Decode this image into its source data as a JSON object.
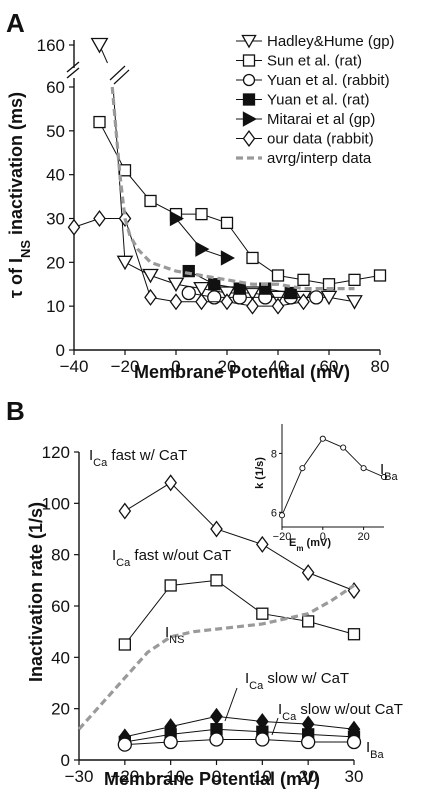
{
  "chart_data": [
    {
      "type": "line",
      "panel_label": "A",
      "xlabel": "Membrane Potential (mV)",
      "ylabel": "τ of I_NS inactivation (ms)",
      "ylabel_parts": {
        "pre": "τ of I",
        "sub": "NS",
        "post": " inactivation (ms)"
      },
      "xlim": [
        -40,
        80
      ],
      "ylim": [
        0,
        65
      ],
      "y_break": true,
      "xticks": [
        -40,
        -20,
        0,
        20,
        40,
        60,
        80
      ],
      "xtick_labels": [
        "−40",
        "−20",
        "0",
        "20",
        "40",
        "60",
        "80"
      ],
      "yticks": [
        0,
        10,
        20,
        30,
        40,
        50,
        60
      ],
      "ytick_labels": [
        "0",
        "10",
        "20",
        "30",
        "40",
        "50",
        "60"
      ],
      "break_tick_label": "160",
      "break_tick_value": 160,
      "legend_position": "top-right",
      "series": [
        {
          "name": "Hadley&Hume (gp)",
          "marker": "triangle-down-open",
          "x": [
            -30,
            -20,
            -10,
            0,
            10,
            20,
            30,
            40,
            50,
            60,
            70
          ],
          "y": [
            160,
            20,
            17,
            15,
            14,
            13,
            13,
            12,
            12,
            12,
            11
          ]
        },
        {
          "name": "Sun et al. (rat)",
          "marker": "square-open",
          "x": [
            -30,
            -20,
            -10,
            0,
            10,
            20,
            30,
            40,
            50,
            60,
            70,
            80
          ],
          "y": [
            52,
            41,
            34,
            31,
            31,
            29,
            21,
            17,
            16,
            15,
            16,
            17
          ]
        },
        {
          "name": "Yuan et al. (rabbit)",
          "marker": "circle-open",
          "x": [
            5,
            15,
            25,
            35,
            45,
            55
          ],
          "y": [
            13,
            12,
            12,
            12,
            12,
            12
          ]
        },
        {
          "name": "Yuan et al. (rat)",
          "marker": "square-filled",
          "x": [
            5,
            15,
            25,
            35,
            45
          ],
          "y": [
            18,
            15,
            14,
            14,
            13
          ]
        },
        {
          "name": "Mitarai et al (gp)",
          "marker": "triangle-right-filled",
          "x": [
            0,
            10,
            20
          ],
          "y": [
            30,
            23,
            21
          ]
        },
        {
          "name": "our data (rabbit)",
          "marker": "diamond-open",
          "x": [
            -40,
            -30,
            -20,
            -10,
            0,
            10,
            20,
            30,
            40,
            50
          ],
          "y": [
            28,
            30,
            30,
            12,
            11,
            11,
            11,
            10,
            10,
            11
          ]
        },
        {
          "name": "avrg/interp data",
          "style": "dashed-gray",
          "x": [
            -25,
            -22,
            -20,
            -18,
            -15,
            -10,
            -5,
            0,
            10,
            20,
            30,
            40,
            50,
            60,
            70
          ],
          "y": [
            60,
            40,
            30,
            26,
            23,
            20,
            19,
            18,
            17,
            16,
            15,
            15,
            14,
            14,
            14
          ]
        }
      ]
    },
    {
      "type": "line",
      "panel_label": "B",
      "xlabel": "Membrane Potential (mV)",
      "ylabel": "Inactivation rate (1/s)",
      "xlim": [
        -30,
        30
      ],
      "ylim": [
        0,
        120
      ],
      "xticks": [
        -30,
        -20,
        -10,
        0,
        10,
        20,
        30
      ],
      "xtick_labels": [
        "−30",
        "−20",
        "−10",
        "0",
        "10",
        "20",
        "30"
      ],
      "yticks": [
        0,
        20,
        40,
        60,
        80,
        100,
        120
      ],
      "ytick_labels": [
        "0",
        "20",
        "40",
        "60",
        "80",
        "100",
        "120"
      ],
      "series": [
        {
          "name": "I_Ca fast w/ CaT",
          "marker": "diamond-open",
          "x": [
            -20,
            -10,
            0,
            10,
            20,
            30
          ],
          "y": [
            97,
            108,
            90,
            84,
            73,
            66
          ]
        },
        {
          "name": "I_Ca fast w/out CaT",
          "marker": "square-open",
          "x": [
            -20,
            -10,
            0,
            10,
            20,
            30
          ],
          "y": [
            45,
            68,
            70,
            57,
            54,
            49
          ]
        },
        {
          "name": "I_NS",
          "style": "dashed-gray",
          "x": [
            -30,
            -25,
            -20,
            -15,
            -10,
            -5,
            0,
            5,
            10,
            15,
            20,
            25,
            30
          ],
          "y": [
            12,
            22,
            32,
            42,
            48,
            50,
            51,
            52,
            53,
            55,
            57,
            62,
            68
          ]
        },
        {
          "name": "I_Ca slow w/ CaT",
          "marker": "diamond-filled",
          "x": [
            -20,
            -10,
            0,
            10,
            20,
            30
          ],
          "y": [
            9,
            13,
            17,
            15,
            14,
            12
          ]
        },
        {
          "name": "I_Ca slow w/out CaT",
          "marker": "square-filled",
          "x": [
            -20,
            -10,
            0,
            10,
            20,
            30
          ],
          "y": [
            7,
            10,
            12,
            11,
            10,
            9
          ]
        },
        {
          "name": "I_Ba",
          "marker": "circle-open",
          "x": [
            -20,
            -10,
            0,
            10,
            20,
            30
          ],
          "y": [
            6,
            7,
            8,
            8,
            7,
            7
          ]
        }
      ],
      "annotations": {
        "fast_wCaT": {
          "pre": "I",
          "sub": "Ca",
          "post": " fast w/ CaT"
        },
        "fast_woCaT": {
          "pre": "I",
          "sub": "Ca",
          "post": " fast w/out CaT"
        },
        "ins": {
          "pre": "I",
          "sub": "NS",
          "post": ""
        },
        "slow_wCaT": {
          "pre": "I",
          "sub": "Ca",
          "post": " slow w/ CaT"
        },
        "slow_woCaT": {
          "pre": "I",
          "sub": "Ca",
          "post": " slow w/out CaT"
        },
        "iba": {
          "pre": "I",
          "sub": "Ba",
          "post": ""
        }
      },
      "inset": {
        "type": "line",
        "xlabel_parts": {
          "pre": "E",
          "sub": "m",
          "post": " (mV)"
        },
        "ylabel": "k (1/s)",
        "label_parts": {
          "pre": "I",
          "sub": "Ba",
          "post": ""
        },
        "xlim": [
          -20,
          30
        ],
        "ylim": [
          5.5,
          9
        ],
        "xticks": [
          -20,
          0,
          20
        ],
        "xtick_labels": [
          "−20",
          "0",
          "20"
        ],
        "yticks": [
          6,
          8
        ],
        "ytick_labels": [
          "6",
          "8"
        ],
        "x": [
          -20,
          -10,
          0,
          10,
          20,
          30
        ],
        "y": [
          5.9,
          7.5,
          8.5,
          8.2,
          7.5,
          7.2
        ]
      }
    }
  ]
}
